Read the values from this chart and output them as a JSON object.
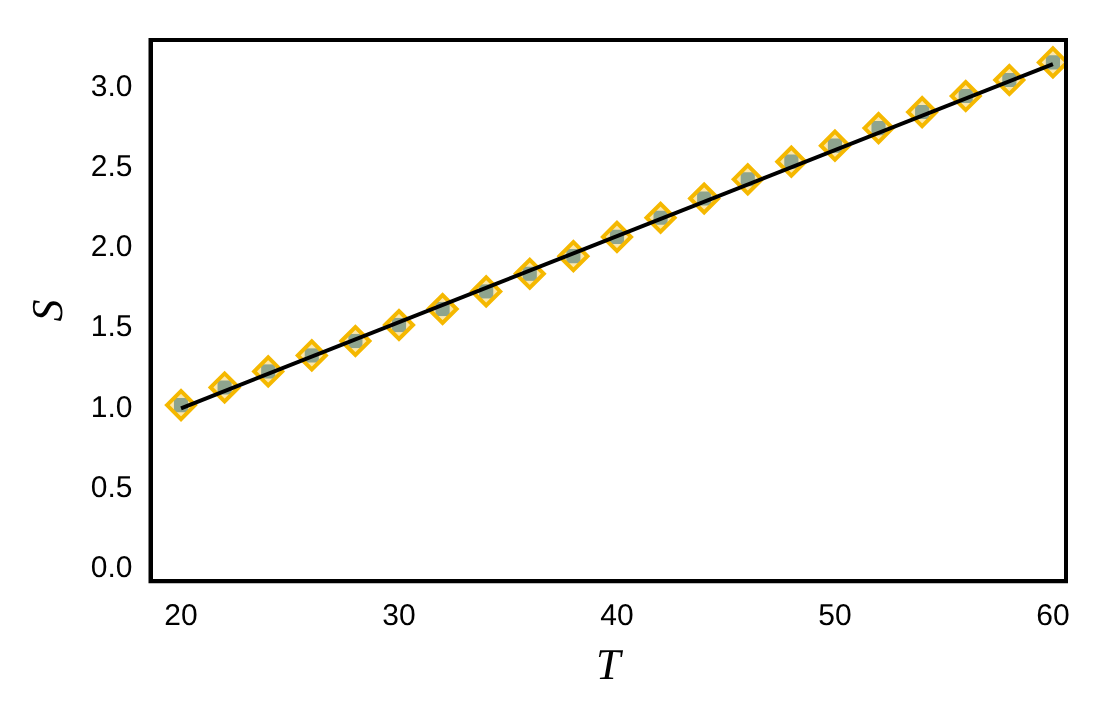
{
  "chart_data": {
    "type": "scatter",
    "xlabel": "T",
    "ylabel": "S",
    "x": [
      20,
      22,
      24,
      26,
      28,
      30,
      32,
      34,
      36,
      38,
      40,
      42,
      44,
      46,
      48,
      50,
      52,
      54,
      56,
      58,
      60
    ],
    "series": [
      {
        "color": "#5b9bd5",
        "marker": "square",
        "values": [
          1.02,
          1.13,
          1.23,
          1.33,
          1.42,
          1.52,
          1.62,
          1.73,
          1.84,
          1.95,
          2.07,
          2.19,
          2.31,
          2.43,
          2.54,
          2.64,
          2.75,
          2.85,
          2.95,
          3.05,
          3.16
        ]
      },
      {
        "color": "#f5b800",
        "marker": "diamond",
        "values": [
          1.02,
          1.13,
          1.23,
          1.33,
          1.42,
          1.52,
          1.62,
          1.73,
          1.84,
          1.95,
          2.07,
          2.19,
          2.31,
          2.43,
          2.54,
          2.64,
          2.75,
          2.85,
          2.95,
          3.05,
          3.16
        ]
      },
      {
        "type": "line",
        "color": "#000000",
        "x": [
          20,
          60
        ],
        "values": [
          1.0,
          3.15
        ],
        "marker": "none",
        "line_style": "solid"
      }
    ],
    "xlim": [
      18.6,
      60.6
    ],
    "xticks": [
      20,
      30,
      40,
      50,
      60
    ],
    "ylim": [
      -0.08,
      3.3
    ],
    "yticks": [
      {
        "value": 0,
        "label": "0.0"
      },
      0.5,
      {
        "value": 1,
        "label": "1.0"
      },
      1.5,
      {
        "value": 2,
        "label": "2.0"
      },
      2.5,
      {
        "value": 3,
        "label": "3.0"
      }
    ],
    "grid": false,
    "legend": false
  }
}
